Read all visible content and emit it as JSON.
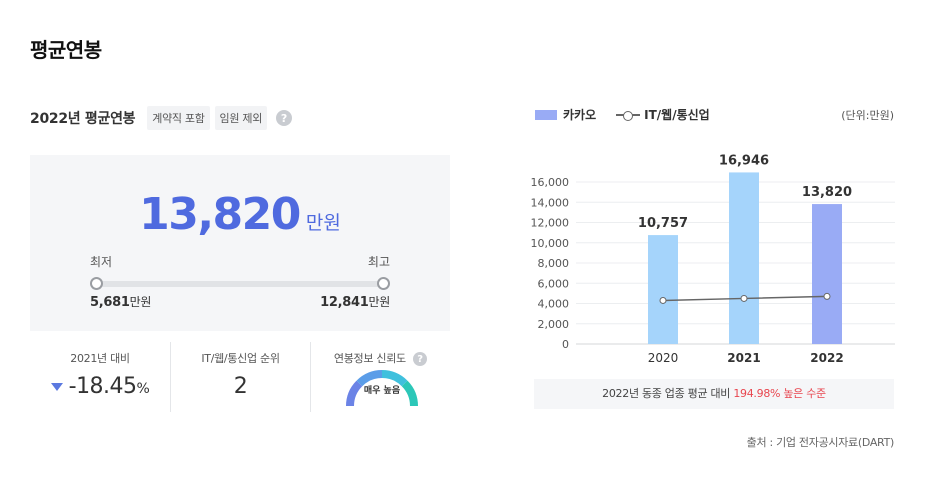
{
  "page": {
    "title": "평균연봉"
  },
  "summary": {
    "title": "2022년 평균연봉",
    "chips": [
      "계약직 포함",
      "임원 제외"
    ],
    "help": "?",
    "salary": "13,820",
    "unit": "만원",
    "min_label": "최저",
    "max_label": "최고",
    "min_value": "5,681",
    "max_value": "12,841"
  },
  "stats": {
    "yoy_label": "2021년 대비",
    "yoy_value": "-18.45",
    "yoy_unit": "%",
    "rank_label": "IT/웹/통신업 순위",
    "rank_value": "2",
    "reliability_label": "연봉정보 신뢰도",
    "reliability_value": "매우 높음"
  },
  "legend": {
    "bar": "카카오",
    "line": "IT/웹/통신업",
    "unit": "(단위:만원)"
  },
  "compare": {
    "prefix": "2022년 동종 업종 평균 대비 ",
    "highlight": "194.98% 높은 수준"
  },
  "source": "출처 : 기업 전자공시자료(DART)",
  "colors": {
    "accent": "#4f6adf",
    "bar_light": "#a5d4fb",
    "bar_highlight": "#99abf5",
    "line": "#666666",
    "negative": "#e8464f"
  },
  "chart_data": {
    "type": "bar",
    "categories": [
      "2020",
      "2021",
      "2022"
    ],
    "series": [
      {
        "name": "카카오",
        "type": "bar",
        "values": [
          10757,
          16946,
          13820
        ],
        "labels": [
          "10,757",
          "16,946",
          "13,820"
        ]
      },
      {
        "name": "IT/웹/통신업",
        "type": "line",
        "values": [
          4300,
          4500,
          4700
        ]
      }
    ],
    "yticks": [
      "0",
      "2,000",
      "4,000",
      "6,000",
      "8,000",
      "10,000",
      "12,000",
      "14,000",
      "16,000"
    ],
    "ylim": [
      0,
      16000
    ],
    "grid": true,
    "legend": "top-left"
  }
}
